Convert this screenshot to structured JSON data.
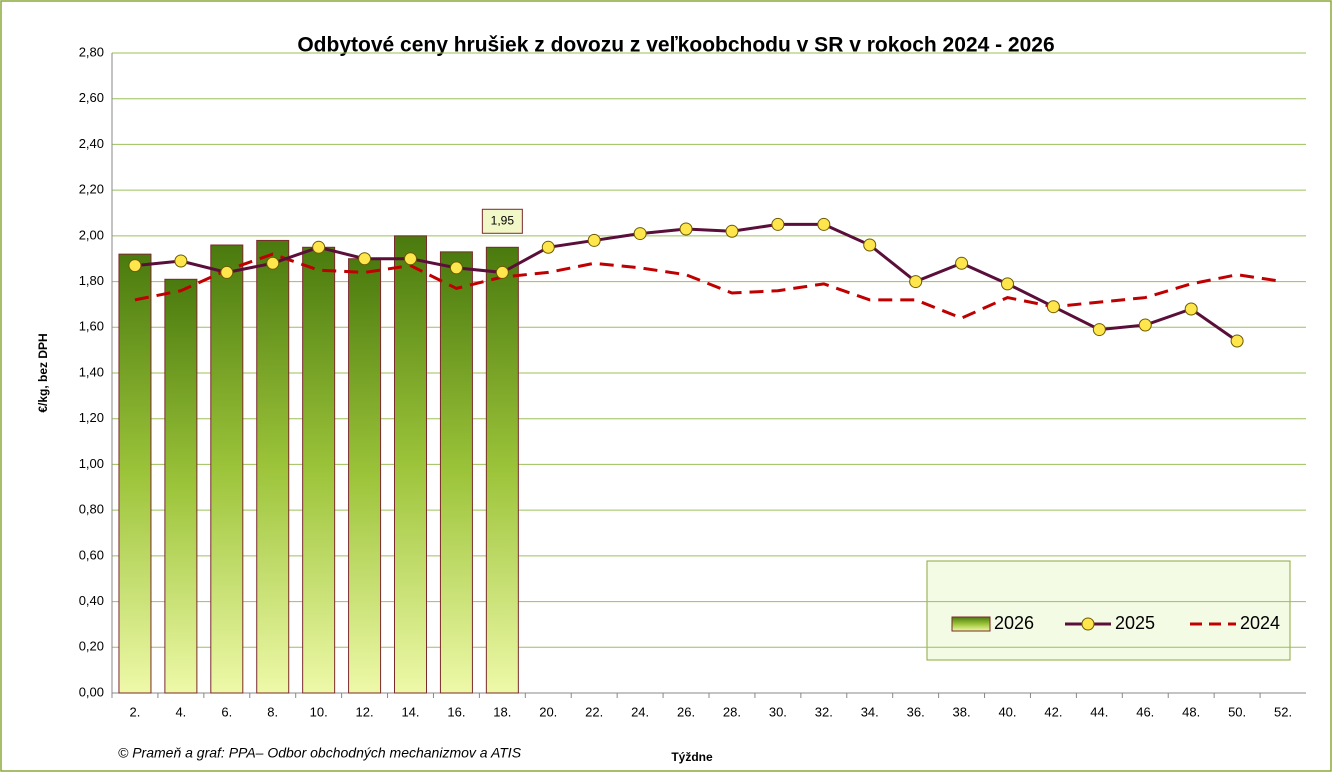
{
  "chart_data": {
    "type": "bar-line",
    "title": "Odbytové ceny hrušiek z dovozu z veľkoobchodu v SR v rokoch 2024 - 2026",
    "y_label": "€/kg, bez DPH",
    "x_label": "Týždne",
    "source": "© Prameň a graf: PPA– Odbor obchodných mechanizmov a ATIS",
    "categories": [
      "2.",
      "4.",
      "6.",
      "8.",
      "10.",
      "12.",
      "14.",
      "16.",
      "18.",
      "20.",
      "22.",
      "24.",
      "26.",
      "28.",
      "30.",
      "32.",
      "34.",
      "36.",
      "38.",
      "40.",
      "42.",
      "44.",
      "46.",
      "48.",
      "50.",
      "52."
    ],
    "series": [
      {
        "name": "2026",
        "type": "bar",
        "color": "#5a8a16",
        "values": [
          1.92,
          1.81,
          1.96,
          1.98,
          1.95,
          1.9,
          2.0,
          1.93,
          1.95,
          null,
          null,
          null,
          null,
          null,
          null,
          null,
          null,
          null,
          null,
          null,
          null,
          null,
          null,
          null,
          null,
          null
        ],
        "value_labels": [
          null,
          null,
          null,
          null,
          null,
          null,
          null,
          null,
          "1,95",
          null,
          null,
          null,
          null,
          null,
          null,
          null,
          null,
          null,
          null,
          null,
          null,
          null,
          null,
          null,
          null,
          null
        ]
      },
      {
        "name": "2025",
        "type": "line",
        "color": "#5a0f3a",
        "marker_color": "#ffe64d",
        "values": [
          1.87,
          1.89,
          1.84,
          1.88,
          1.95,
          1.9,
          1.9,
          1.86,
          1.84,
          1.95,
          1.98,
          2.01,
          2.03,
          2.02,
          2.05,
          2.05,
          1.96,
          1.8,
          1.88,
          1.79,
          1.69,
          1.59,
          1.61,
          1.68,
          1.54,
          null
        ]
      },
      {
        "name": "2024",
        "type": "dashed-line",
        "color": "#c00000",
        "values": [
          1.72,
          1.76,
          1.85,
          1.92,
          1.85,
          1.84,
          1.87,
          1.77,
          1.82,
          1.84,
          1.88,
          1.86,
          1.83,
          1.75,
          1.76,
          1.79,
          1.72,
          1.72,
          1.64,
          1.73,
          1.69,
          1.71,
          1.73,
          1.79,
          1.83,
          1.8
        ]
      }
    ],
    "ylim": [
      0,
      2.8
    ],
    "yticks": [
      {
        "value": 0,
        "label": "0,00"
      },
      {
        "value": 0.2,
        "label": "0,20"
      },
      {
        "value": 0.4,
        "label": "0,40"
      },
      {
        "value": 0.6,
        "label": "0,60"
      },
      {
        "value": 0.8,
        "label": "0,80"
      },
      {
        "value": 1,
        "label": "1,00"
      },
      {
        "value": 1.2,
        "label": "1,20"
      },
      {
        "value": 1.4,
        "label": "1,40"
      },
      {
        "value": 1.6,
        "label": "1,60"
      },
      {
        "value": 1.8,
        "label": "1,80"
      },
      {
        "value": 2,
        "label": "2,00"
      },
      {
        "value": 2.2,
        "label": "2,20"
      },
      {
        "value": 2.4,
        "label": "2,40"
      },
      {
        "value": 2.6,
        "label": "2,60"
      },
      {
        "value": 2.8,
        "label": "2,80"
      }
    ],
    "grid": true,
    "legend": "bottom-right"
  }
}
